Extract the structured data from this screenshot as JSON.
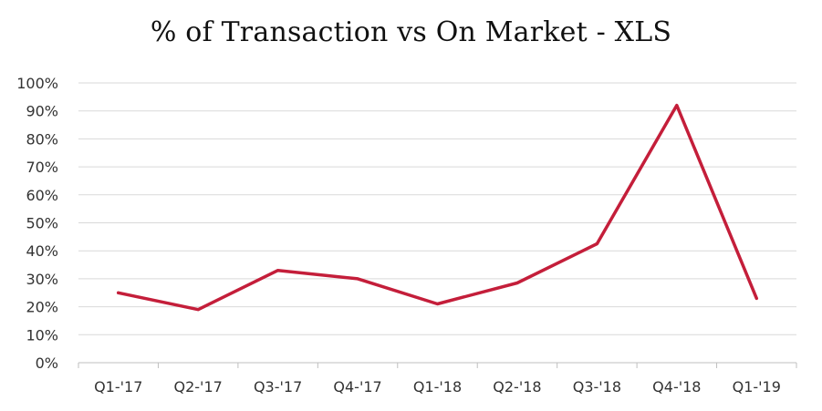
{
  "chart_data": {
    "type": "line",
    "title": "% of Transaction vs On Market - XLS",
    "xlabel": "",
    "ylabel": "",
    "categories": [
      "Q1-'17",
      "Q2-'17",
      "Q3-'17",
      "Q4-'17",
      "Q1-'18",
      "Q2-'18",
      "Q3-'18",
      "Q4-'18",
      "Q1-'19"
    ],
    "series": [
      {
        "values": [
          25,
          19,
          33,
          30,
          21,
          28.5,
          42.5,
          92,
          23
        ],
        "color": "#c41e3a"
      }
    ],
    "ylim": [
      0,
      100
    ],
    "yticks": [
      0,
      10,
      20,
      30,
      40,
      50,
      60,
      70,
      80,
      90,
      100
    ],
    "ytick_labels": [
      "0%",
      "10%",
      "20%",
      "30%",
      "40%",
      "50%",
      "60%",
      "70%",
      "80%",
      "90%",
      "100%"
    ],
    "grid": true,
    "legend": "none"
  },
  "colors": {
    "gridline": "#d9d9d9",
    "axis": "#bfbfbf"
  }
}
